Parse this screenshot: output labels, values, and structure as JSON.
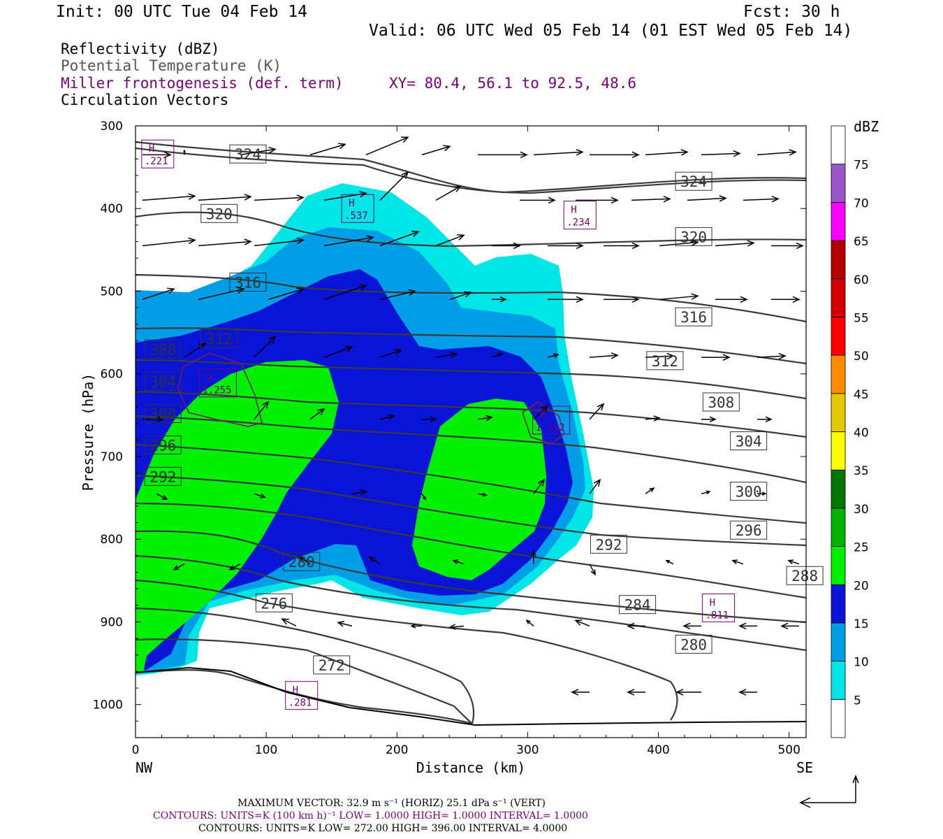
{
  "header": {
    "init": "Init: 00 UTC Tue 04 Feb 14",
    "fcst": "Fcst:   30 h",
    "valid": "Valid: 06 UTC Wed 05 Feb 14 (01 EST Wed 05 Feb 14)"
  },
  "fields": {
    "reflectivity": "Reflectivity (dBZ)",
    "theta": "Potential Temperature (K)",
    "frontogenesis": "Miller frontogenesis (def. term)",
    "xy": "XY=  80.4, 56.1 to  92.5, 48.6",
    "vectors": "Circulation Vectors"
  },
  "axes": {
    "ylabel": "Pressure (hPa)",
    "xlabel": "Distance (km)",
    "left_end": "NW",
    "right_end": "SE"
  },
  "colorbar": {
    "unit": "dBZ",
    "levels": [
      5,
      10,
      15,
      20,
      25,
      30,
      35,
      40,
      45,
      50,
      55,
      60,
      65,
      70,
      75
    ],
    "colors": [
      "#ffffff",
      "#00e6e6",
      "#009ee6",
      "#0a14d6",
      "#00f000",
      "#00b400",
      "#007800",
      "#ffff00",
      "#e6c800",
      "#ff8c00",
      "#ff0000",
      "#d60000",
      "#b40000",
      "#ff00ff",
      "#9955c9",
      "#ffffff"
    ]
  },
  "footer": {
    "max_vector": "MAXIMUM VECTOR:  32.9 m s⁻¹ (HORIZ)          25.1 dPa s⁻¹ (VERT)",
    "contours_fronto": "CONTOURS:  UNITS=K (100 km h)⁻¹  LOW=  1.0000      HIGH=  1.0000      INTERVAL=   1.0000",
    "contours_theta": "CONTOURS:  UNITS=K  LOW=  272.00      HIGH=  396.00      INTERVAL=   4.0000"
  },
  "chart_data": {
    "type": "heatmap",
    "x_range_km": [
      0,
      513
    ],
    "y_range_hpa": [
      300,
      1040
    ],
    "x_ticks": [
      0,
      100,
      200,
      300,
      400,
      500
    ],
    "y_ticks": [
      300,
      400,
      500,
      600,
      700,
      800,
      900,
      1000
    ],
    "theta_labels": [
      {
        "value": "324",
        "x": 86,
        "p": 334
      },
      {
        "value": "324",
        "x": 427,
        "p": 367
      },
      {
        "value": "320",
        "x": 64,
        "p": 406
      },
      {
        "value": "320",
        "x": 427,
        "p": 434
      },
      {
        "value": "316",
        "x": 86,
        "p": 489
      },
      {
        "value": "316",
        "x": 427,
        "p": 531
      },
      {
        "value": "312",
        "x": 64,
        "p": 557
      },
      {
        "value": "312",
        "x": 405,
        "p": 584
      },
      {
        "value": "308",
        "x": 21,
        "p": 570
      },
      {
        "value": "308",
        "x": 448,
        "p": 634
      },
      {
        "value": "304",
        "x": 21,
        "p": 609
      },
      {
        "value": "304",
        "x": 469,
        "p": 681
      },
      {
        "value": "300",
        "x": 21,
        "p": 648
      },
      {
        "value": "300",
        "x": 469,
        "p": 742
      },
      {
        "value": "296",
        "x": 21,
        "p": 686
      },
      {
        "value": "296",
        "x": 469,
        "p": 789
      },
      {
        "value": "292",
        "x": 21,
        "p": 724
      },
      {
        "value": "292",
        "x": 362,
        "p": 806
      },
      {
        "value": "288",
        "x": 512,
        "p": 844
      },
      {
        "value": "284",
        "x": 384,
        "p": 879
      },
      {
        "value": "280",
        "x": 127,
        "p": 827
      },
      {
        "value": "280",
        "x": 427,
        "p": 927
      },
      {
        "value": "276",
        "x": 106,
        "p": 877
      },
      {
        "value": "272",
        "x": 150,
        "p": 952
      }
    ],
    "frontogenesis_maxima": [
      {
        "label": "H",
        "value": ".221",
        "x": 17,
        "p": 334
      },
      {
        "label": "H",
        "value": ".537",
        "x": 170,
        "p": 400
      },
      {
        "label": "H",
        "value": ".234",
        "x": 340,
        "p": 408
      },
      {
        "label": "H",
        "value": "1.255",
        "x": 63,
        "p": 611
      },
      {
        "label": "H",
        "value": "1.192",
        "x": 318,
        "p": 656
      },
      {
        "label": "H",
        "value": ".811",
        "x": 446,
        "p": 883
      },
      {
        "label": "H",
        "value": ".281",
        "x": 127,
        "p": 989
      }
    ],
    "max_vector": {
      "horiz_m_s": 32.9,
      "vert_dPa_s": 25.1
    }
  }
}
